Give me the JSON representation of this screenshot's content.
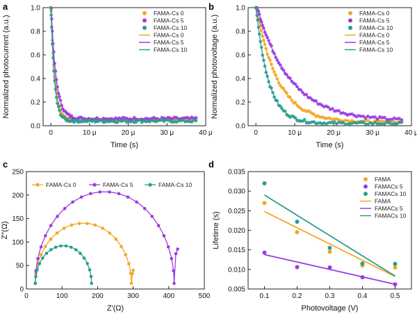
{
  "figure": {
    "panel_labels": [
      "a",
      "b",
      "c",
      "d"
    ]
  },
  "colors": {
    "FAMA-Cs 0": "#f5a623",
    "FAMA-Cs 5": "#9b3be6",
    "FAMA-Cs 10": "#2a9d8f"
  },
  "chart_data": [
    {
      "panel": "a",
      "type": "scatter",
      "title": "",
      "xlabel": "Time (s)",
      "ylabel": "Normalized photocurrent (a.u.)",
      "xlim": [
        -2,
        40
      ],
      "ylim": [
        0,
        1.0
      ],
      "xticks": [
        0,
        10,
        20,
        30,
        40
      ],
      "xtick_labels": [
        "0",
        "10 μ",
        "20 μ",
        "30 μ",
        "40 μ"
      ],
      "yticks": [
        0,
        0.2,
        0.4,
        0.6,
        0.8,
        1.0
      ],
      "ytick_labels": [
        "0.0",
        "0.2",
        "0.4",
        "0.6",
        "0.8",
        "1.0"
      ],
      "legend_position": "top-right",
      "legend": [
        "FAMA-Cs 0",
        "FAMA-Cs 5",
        "FAMA-Cs 10",
        "FAMA-Cs 0",
        "FAMA-Cs 5",
        "FAMA-Cs 10"
      ],
      "series": [
        {
          "name": "FAMA-Cs 0",
          "model": "exp",
          "A": 1.0,
          "tau": 1.0,
          "c": 0.05,
          "x_start": 0,
          "x_end": 37.5,
          "n_points": 90
        },
        {
          "name": "FAMA-Cs 5",
          "model": "exp",
          "A": 1.0,
          "tau": 1.3,
          "c": 0.06,
          "x_start": 0,
          "x_end": 37.5,
          "n_points": 90
        },
        {
          "name": "FAMA-Cs 10",
          "model": "exp",
          "A": 1.0,
          "tau": 0.9,
          "c": 0.04,
          "x_start": 0,
          "x_end": 37.5,
          "n_points": 90
        }
      ]
    },
    {
      "panel": "b",
      "type": "scatter",
      "title": "",
      "xlabel": "Time (s)",
      "ylabel": "Normalized photovoltage (a.u.)",
      "xlim": [
        -2,
        40
      ],
      "ylim": [
        0,
        1.0
      ],
      "xticks": [
        0,
        10,
        20,
        30,
        40
      ],
      "xtick_labels": [
        "0",
        "10 μ",
        "20 μ",
        "30 μ",
        "40 μ"
      ],
      "yticks": [
        0,
        0.2,
        0.4,
        0.6,
        0.8,
        1.0
      ],
      "ytick_labels": [
        "0.0",
        "0.2",
        "0.4",
        "0.6",
        "0.8",
        "1.0"
      ],
      "legend_position": "top-right",
      "legend": [
        "FAMA-Cs 0",
        "FAMA-Cs 5",
        "FAMA-Cs 10",
        "FAMA-Cs 0",
        "FAMA-Cs 5",
        "FAMA-Cs 10"
      ],
      "series": [
        {
          "name": "FAMA-Cs 0",
          "model": "exp",
          "A": 1.0,
          "tau": 5.5,
          "c": 0.03,
          "x_start": 0,
          "x_end": 37.5,
          "n_points": 80
        },
        {
          "name": "FAMA-Cs 5",
          "model": "exp",
          "A": 1.0,
          "tau": 8.5,
          "c": 0.04,
          "x_start": 0,
          "x_end": 37.5,
          "n_points": 80
        },
        {
          "name": "FAMA-Cs 10",
          "model": "exp",
          "A": 1.0,
          "tau": 3.2,
          "c": 0.02,
          "x_start": 0,
          "x_end": 37.5,
          "n_points": 80
        }
      ]
    },
    {
      "panel": "c",
      "type": "line",
      "title": "",
      "xlabel": "Z′(Ω)",
      "ylabel": "Z″(Ω)",
      "xlim": [
        0,
        500
      ],
      "ylim": [
        0,
        250
      ],
      "xticks": [
        0,
        100,
        200,
        300,
        400,
        500
      ],
      "xtick_labels": [
        "0",
        "100",
        "200",
        "300",
        "400",
        "500"
      ],
      "yticks": [
        0,
        50,
        100,
        150,
        200,
        250
      ],
      "ytick_labels": [
        "0",
        "50",
        "100",
        "150",
        "200",
        "250"
      ],
      "legend_position": "top",
      "legend": [
        "FAMA-Cs 0",
        "FAMA-Cs 5",
        "FAMA-Cs 10"
      ],
      "series": [
        {
          "name": "FAMA-Cs 0",
          "model": "arc",
          "r_start": 25,
          "r_end": 295,
          "peak": 128,
          "n_points": 20,
          "tail": [
            [
              298,
              33
            ],
            [
              300,
              40
            ]
          ]
        },
        {
          "name": "FAMA-Cs 5",
          "model": "arc",
          "r_start": 25,
          "r_end": 415,
          "peak": 195,
          "n_points": 24,
          "tail": [
            [
              420,
              75
            ],
            [
              425,
              85
            ]
          ]
        },
        {
          "name": "FAMA-Cs 10",
          "model": "arc",
          "r_start": 25,
          "r_end": 183,
          "peak": 80,
          "n_points": 18,
          "tail": []
        }
      ]
    },
    {
      "panel": "d",
      "type": "scatter",
      "title": "",
      "xlabel": "Photovoltage (V)",
      "ylabel": "Lifetime (s)",
      "xlim": [
        0.05,
        0.55
      ],
      "ylim": [
        0.005,
        0.035
      ],
      "xticks": [
        0.1,
        0.2,
        0.3,
        0.4,
        0.5
      ],
      "xtick_labels": [
        "0.1",
        "0.2",
        "0.3",
        "0.4",
        "0.5"
      ],
      "yticks": [
        0.005,
        0.01,
        0.015,
        0.02,
        0.025,
        0.03,
        0.035
      ],
      "ytick_labels": [
        "0.005",
        "0.010",
        "0.015",
        "0.020",
        "0.025",
        "0.030",
        "0.035"
      ],
      "legend_position": "top-right",
      "legend": [
        "FAMA",
        "FAMACs 5",
        "FAMACs 10",
        "FAMA",
        "FAMACs 5",
        "FAMACs 10"
      ],
      "series": [
        {
          "name": "FAMA",
          "x": [
            0.1,
            0.2,
            0.3,
            0.4,
            0.5
          ],
          "y": [
            0.027,
            0.0195,
            0.0145,
            0.011,
            0.0105
          ],
          "fit": [
            [
              0.1,
              0.0248
            ],
            [
              0.5,
              0.0082
            ]
          ]
        },
        {
          "name": "FAMACs 5",
          "x": [
            0.1,
            0.2,
            0.3,
            0.4,
            0.5
          ],
          "y": [
            0.0143,
            0.0106,
            0.0105,
            0.008,
            0.0062
          ],
          "fit": [
            [
              0.1,
              0.0138
            ],
            [
              0.5,
              0.0062
            ]
          ]
        },
        {
          "name": "FAMACs 10",
          "x": [
            0.1,
            0.2,
            0.3,
            0.4,
            0.5
          ],
          "y": [
            0.032,
            0.0222,
            0.0155,
            0.0115,
            0.0114
          ],
          "fit": [
            [
              0.1,
              0.029
            ],
            [
              0.5,
              0.0083
            ]
          ]
        }
      ]
    }
  ]
}
